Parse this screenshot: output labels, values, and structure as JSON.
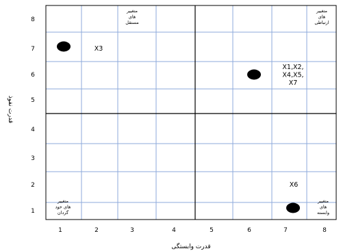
{
  "chart_data": {
    "type": "scatter",
    "xlabel": "قدرت وابستگی",
    "ylabel": "قدرت نفوذ",
    "x_ticks": [
      "1",
      "2",
      "3",
      "4",
      "5",
      "6",
      "7",
      "8"
    ],
    "y_ticks": [
      "1",
      "2",
      "3",
      "4",
      "5",
      "6",
      "7",
      "8"
    ],
    "xlim": [
      0.5,
      8.5
    ],
    "ylim": [
      0.5,
      8.5
    ],
    "grid": true,
    "points": [
      {
        "x": 1,
        "y": 7
      },
      {
        "x": 6,
        "y": 6
      },
      {
        "x": 7,
        "y": 1
      }
    ],
    "annotations": [
      {
        "x": 2,
        "y": 7,
        "lines": [
          "X3"
        ]
      },
      {
        "x": 7,
        "y": 6,
        "lines": [
          "X1,X2,",
          "X4,X5,",
          "X7"
        ]
      },
      {
        "x": 7,
        "y": 2,
        "lines": [
          "X6"
        ]
      }
    ],
    "quadrant_labels": [
      {
        "x": 3,
        "y": 8,
        "lines": [
          "متغییر",
          "های",
          "مستقل"
        ]
      },
      {
        "x": 8,
        "y": 8,
        "lines": [
          "متغییر",
          "های",
          "ارتباطی"
        ]
      },
      {
        "x": 1,
        "y": 1,
        "lines": [
          "متغییر",
          "های خود",
          "گردان"
        ]
      },
      {
        "x": 8,
        "y": 1,
        "lines": [
          "متغییر",
          "های",
          "وابسته"
        ]
      }
    ]
  }
}
